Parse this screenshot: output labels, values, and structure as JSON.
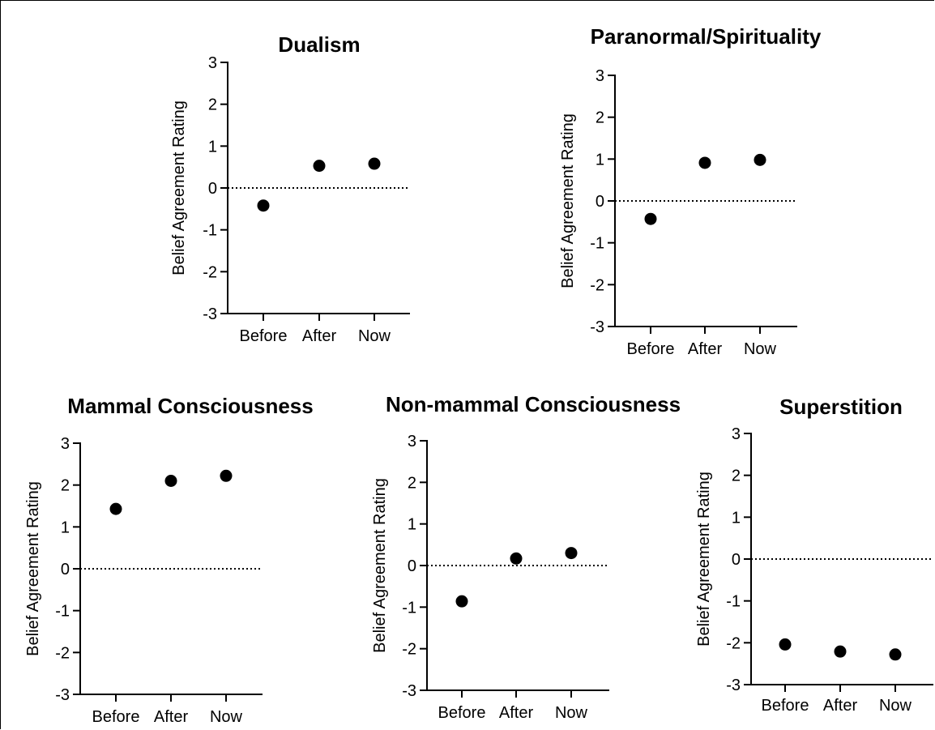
{
  "chart_data": [
    {
      "type": "scatter",
      "title": "Dualism",
      "ylabel": "Belief Agreement Rating",
      "categories": [
        "Before",
        "After",
        "Now"
      ],
      "values": [
        -0.42,
        0.53,
        0.58
      ],
      "ylim": [
        -3,
        3
      ],
      "yticks": [
        "3",
        "2",
        "1",
        "0",
        "-1",
        "-2",
        "-3"
      ],
      "reference_line": 0,
      "grid": false
    },
    {
      "type": "scatter",
      "title": "Paranormal/Spirituality",
      "ylabel": "Belief Agreement Rating",
      "categories": [
        "Before",
        "After",
        "Now"
      ],
      "values": [
        -0.43,
        0.91,
        0.98
      ],
      "ylim": [
        -3,
        3
      ],
      "yticks": [
        "3",
        "2",
        "1",
        "0",
        "-1",
        "-2",
        "-3"
      ],
      "reference_line": 0,
      "grid": false
    },
    {
      "type": "scatter",
      "title": "Mammal Consciousness",
      "ylabel": "Belief Agreement Rating",
      "categories": [
        "Before",
        "After",
        "Now"
      ],
      "values": [
        1.43,
        2.1,
        2.22
      ],
      "ylim": [
        -3,
        3
      ],
      "yticks": [
        "3",
        "2",
        "1",
        "0",
        "-1",
        "-2",
        "-3"
      ],
      "reference_line": 0,
      "grid": false
    },
    {
      "type": "scatter",
      "title": "Non-mammal Consciousness",
      "ylabel": "Belief Agreement Rating",
      "categories": [
        "Before",
        "After",
        "Now"
      ],
      "values": [
        -0.86,
        0.17,
        0.3
      ],
      "ylim": [
        -3,
        3
      ],
      "yticks": [
        "3",
        "2",
        "1",
        "0",
        "-1",
        "-2",
        "-3"
      ],
      "reference_line": 0,
      "grid": false
    },
    {
      "type": "scatter",
      "title": "Superstition",
      "ylabel": "Belief Agreement Rating",
      "categories": [
        "Before",
        "After",
        "Now"
      ],
      "values": [
        -2.04,
        -2.21,
        -2.28
      ],
      "ylim": [
        -3,
        3
      ],
      "yticks": [
        "3",
        "2",
        "1",
        "0",
        "-1",
        "-2",
        "-3"
      ],
      "reference_line": 0,
      "grid": false
    }
  ]
}
